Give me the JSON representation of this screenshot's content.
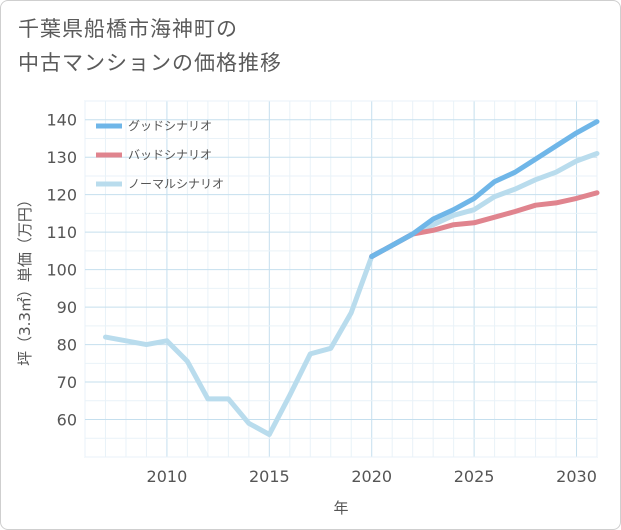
{
  "title_line1": "千葉県船橋市海神町の",
  "title_line2": "中古マンションの価格推移",
  "chart_data": {
    "type": "line",
    "xlabel": "年",
    "ylabel": "坪（3.3㎡）単価（万円）",
    "xlim": [
      2006,
      2031
    ],
    "ylim": [
      50,
      145
    ],
    "x_ticks": [
      2010,
      2015,
      2020,
      2025,
      2030
    ],
    "y_ticks": [
      60,
      70,
      80,
      90,
      100,
      110,
      120,
      130,
      140
    ],
    "grid": true,
    "legend_position": "top-left",
    "series": [
      {
        "name": "グッドシナリオ",
        "color": "#6fb6e8",
        "x": [
          2020,
          2021,
          2022,
          2023,
          2024,
          2025,
          2026,
          2027,
          2028,
          2029,
          2030,
          2031
        ],
        "values": [
          103.5,
          106.5,
          109.5,
          113.5,
          116,
          119,
          123.5,
          126,
          129.5,
          133,
          136.5,
          139.5
        ]
      },
      {
        "name": "バッドシナリオ",
        "color": "#e0848e",
        "x": [
          2020,
          2021,
          2022,
          2023,
          2024,
          2025,
          2026,
          2027,
          2028,
          2029,
          2030,
          2031
        ],
        "values": [
          103.5,
          106.5,
          109.5,
          110.5,
          112,
          112.5,
          114,
          115.5,
          117.2,
          117.8,
          119,
          120.5
        ]
      },
      {
        "name": "ノーマルシナリオ",
        "color": "#b9dced",
        "x": [
          2007,
          2008,
          2009,
          2010,
          2011,
          2012,
          2013,
          2014,
          2015,
          2016,
          2017,
          2018,
          2019,
          2020,
          2021,
          2022,
          2023,
          2024,
          2025,
          2026,
          2027,
          2028,
          2029,
          2030,
          2031
        ],
        "values": [
          82,
          81,
          80,
          81,
          75.5,
          65.5,
          65.5,
          59,
          56,
          66.5,
          77.5,
          79,
          88.5,
          103.5,
          106.5,
          109.5,
          112,
          114.5,
          116,
          119.5,
          121.5,
          124,
          126,
          129,
          131
        ]
      }
    ]
  }
}
